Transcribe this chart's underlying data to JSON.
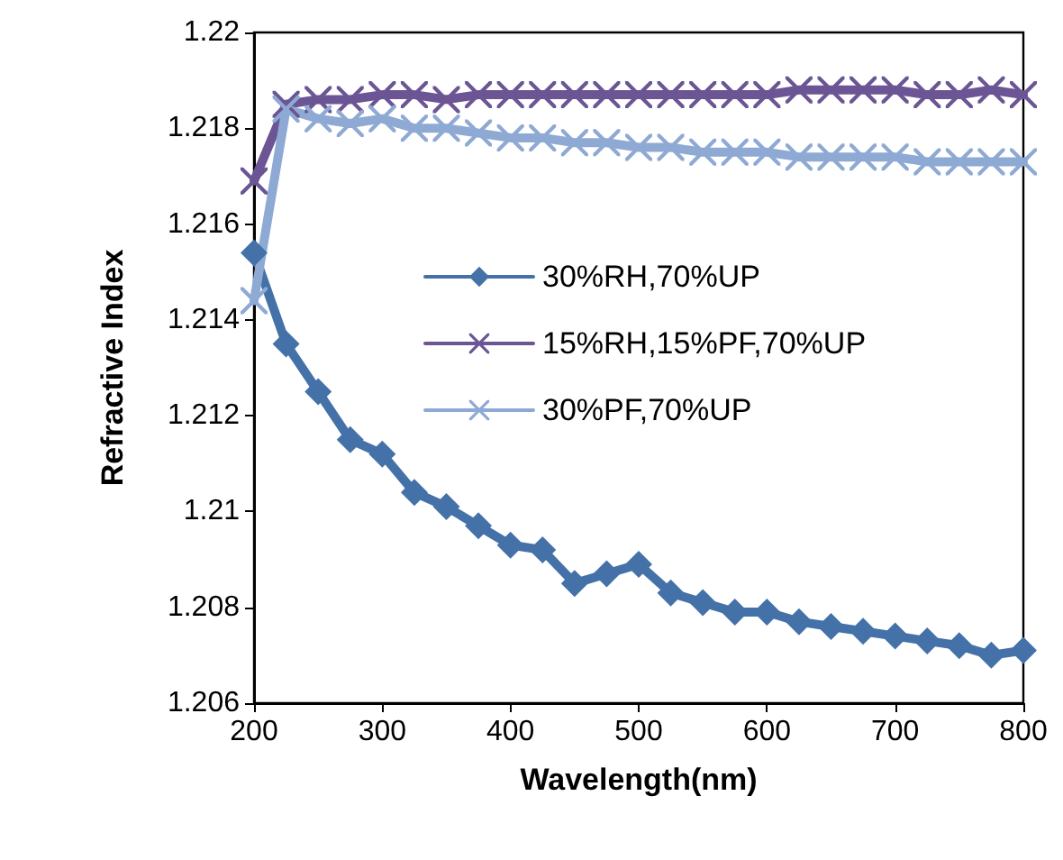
{
  "chart_data": {
    "type": "line",
    "xlabel": "Wavelength(nm)",
    "ylabel": "Refractive Index",
    "x": [
      200,
      225,
      250,
      275,
      300,
      325,
      350,
      375,
      400,
      425,
      450,
      475,
      500,
      525,
      550,
      575,
      600,
      625,
      650,
      675,
      700,
      725,
      750,
      775,
      800
    ],
    "series": [
      {
        "name": "30%RH,70%UP",
        "color": "#4472a8",
        "marker": "diamond",
        "values": [
          1.2154,
          1.2135,
          1.2125,
          1.2115,
          1.2112,
          1.2104,
          1.2101,
          1.2097,
          1.2093,
          1.2092,
          1.2085,
          1.2087,
          1.2089,
          1.2083,
          1.2081,
          1.2079,
          1.2079,
          1.2077,
          1.2076,
          1.2075,
          1.2074,
          1.2073,
          1.2072,
          1.207,
          1.2071
        ]
      },
      {
        "name": "15%RH,15%PF,70%UP",
        "color": "#6b5594",
        "marker": "cross",
        "values": [
          1.2169,
          1.2185,
          1.2186,
          1.2186,
          1.2187,
          1.2187,
          1.2186,
          1.2187,
          1.2187,
          1.2187,
          1.2187,
          1.2187,
          1.2187,
          1.2187,
          1.2187,
          1.2187,
          1.2187,
          1.2188,
          1.2188,
          1.2188,
          1.2188,
          1.2187,
          1.2187,
          1.2188,
          1.2187
        ]
      },
      {
        "name": "30%PF,70%UP",
        "color": "#8eaad4",
        "marker": "cross",
        "values": [
          1.2144,
          1.2184,
          1.2182,
          1.2181,
          1.2182,
          1.218,
          1.218,
          1.2179,
          1.2178,
          1.2178,
          1.2177,
          1.2177,
          1.2176,
          1.2176,
          1.2175,
          1.2175,
          1.2175,
          1.2174,
          1.2174,
          1.2174,
          1.2174,
          1.2173,
          1.2173,
          1.2173,
          1.2173
        ]
      }
    ],
    "xlim": [
      200,
      800
    ],
    "xticks": [
      200,
      300,
      400,
      500,
      600,
      700,
      800
    ],
    "ylim": [
      1.206,
      1.22
    ],
    "yticks": [
      1.206,
      1.208,
      1.21,
      1.212,
      1.214,
      1.216,
      1.218,
      1.22
    ],
    "grid": false,
    "legend": "center"
  }
}
